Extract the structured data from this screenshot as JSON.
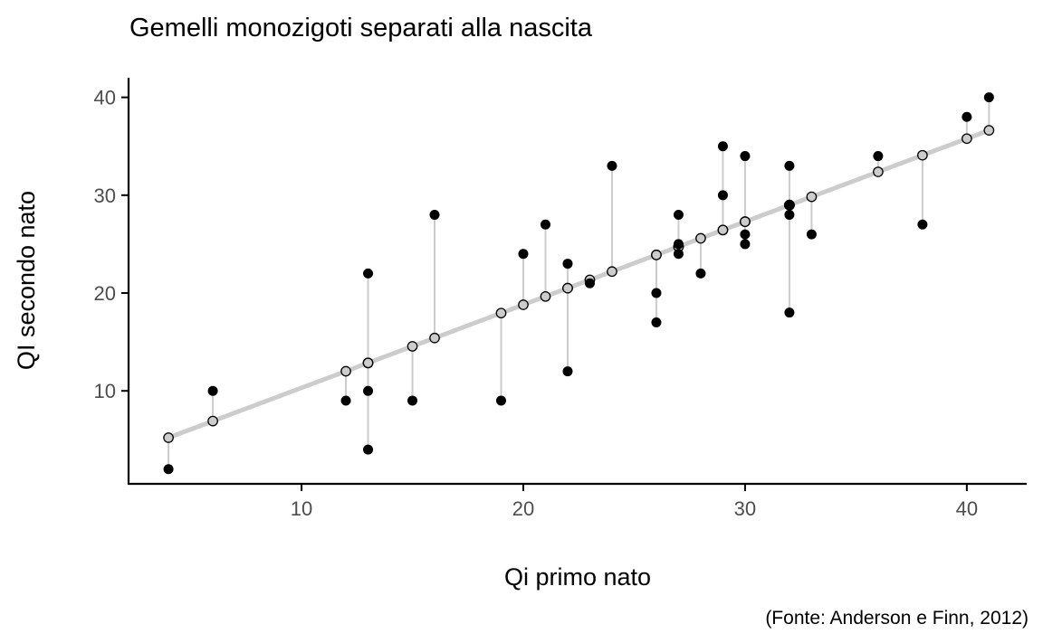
{
  "chart_data": {
    "type": "scatter",
    "title": "Gemelli monozigoti separati alla nascita",
    "xlabel": "Qi primo nato",
    "ylabel": "QI secondo nato",
    "caption": "(Fonte: Anderson e Finn, 2012)",
    "xlim": [
      2.2,
      42.7
    ],
    "ylim": [
      0.5,
      42.0
    ],
    "xticks": [
      10,
      20,
      30,
      40
    ],
    "yticks": [
      10,
      20,
      30,
      40
    ],
    "grid": false,
    "legend": "none",
    "regression": {
      "slope": 0.849,
      "intercept": 1.82,
      "x_range": [
        4,
        41
      ]
    },
    "points": [
      {
        "x": 4,
        "y": 2
      },
      {
        "x": 6,
        "y": 10
      },
      {
        "x": 12,
        "y": 9
      },
      {
        "x": 13,
        "y": 22
      },
      {
        "x": 13,
        "y": 10
      },
      {
        "x": 13,
        "y": 4
      },
      {
        "x": 15,
        "y": 9
      },
      {
        "x": 16,
        "y": 28
      },
      {
        "x": 19,
        "y": 9
      },
      {
        "x": 20,
        "y": 24
      },
      {
        "x": 21,
        "y": 27
      },
      {
        "x": 22,
        "y": 23
      },
      {
        "x": 22,
        "y": 12
      },
      {
        "x": 23,
        "y": 21
      },
      {
        "x": 24,
        "y": 33
      },
      {
        "x": 26,
        "y": 20
      },
      {
        "x": 26,
        "y": 17
      },
      {
        "x": 27,
        "y": 28
      },
      {
        "x": 27,
        "y": 25
      },
      {
        "x": 27,
        "y": 24
      },
      {
        "x": 28,
        "y": 22
      },
      {
        "x": 29,
        "y": 35
      },
      {
        "x": 29,
        "y": 30
      },
      {
        "x": 30,
        "y": 34
      },
      {
        "x": 30,
        "y": 26
      },
      {
        "x": 30,
        "y": 25
      },
      {
        "x": 32,
        "y": 33
      },
      {
        "x": 32,
        "y": 29
      },
      {
        "x": 32,
        "y": 28
      },
      {
        "x": 32,
        "y": 18
      },
      {
        "x": 33,
        "y": 26
      },
      {
        "x": 36,
        "y": 34
      },
      {
        "x": 38,
        "y": 27
      },
      {
        "x": 40,
        "y": 38
      },
      {
        "x": 41,
        "y": 40
      }
    ],
    "colors": {
      "observed": "#000000",
      "fitted_fill": "#cccccc",
      "fitted_stroke": "#000000",
      "line": "#cccccc",
      "residual": "#cccccc"
    }
  }
}
